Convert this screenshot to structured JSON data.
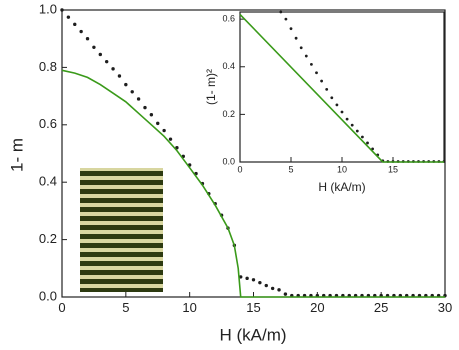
{
  "chart_data": [
    {
      "type": "line",
      "x_label": "H (kA/m)",
      "y_label": "1- m",
      "xlim": [
        0,
        30
      ],
      "ylim": [
        0,
        1.0
      ],
      "xticks": [
        0,
        5,
        10,
        15,
        20,
        25,
        30
      ],
      "yticks": [
        {
          "value": 0,
          "label": "0.0"
        },
        0.2,
        0.4,
        0.6,
        0.8,
        {
          "value": 1.0,
          "label": "1.0"
        }
      ],
      "series": [
        {
          "color": "#1e1e1e",
          "style": "markers",
          "x": [
            0,
            0.5,
            1,
            1.5,
            2,
            2.5,
            3,
            3.5,
            4,
            4.5,
            5,
            5.5,
            6,
            6.5,
            7,
            7.5,
            8,
            8.5,
            9,
            9.5,
            10,
            10.5,
            11,
            11.5,
            12,
            12.5,
            13,
            13.5,
            14,
            14.5,
            15,
            15.5,
            16,
            16.5,
            17,
            17.5,
            18,
            18.5,
            19,
            19.5,
            20,
            20.5,
            21,
            21.5,
            22,
            22.5,
            23,
            23.5,
            24,
            24.5,
            25,
            25.5,
            26,
            26.5,
            27,
            27.5,
            28,
            28.5,
            29,
            29.5,
            30
          ],
          "values": [
            1.0,
            0.975,
            0.95,
            0.925,
            0.9,
            0.87,
            0.845,
            0.82,
            0.795,
            0.77,
            0.74,
            0.715,
            0.69,
            0.66,
            0.635,
            0.605,
            0.58,
            0.55,
            0.52,
            0.49,
            0.46,
            0.43,
            0.395,
            0.36,
            0.325,
            0.285,
            0.24,
            0.18,
            0.07,
            0.065,
            0.06,
            0.05,
            0.04,
            0.03,
            0.025,
            0.01,
            0.005,
            0.005,
            0.005,
            0.005,
            0.005,
            0.005,
            0.005,
            0.005,
            0.005,
            0.005,
            0.005,
            0.005,
            0.005,
            0.005,
            0.005,
            0.005,
            0.005,
            0.005,
            0.005,
            0.005,
            0.005,
            0.005,
            0.005,
            0.005,
            0.005
          ]
        },
        {
          "color": "#3a9a1a",
          "style": "line",
          "x": [
            0,
            1,
            2,
            3,
            4,
            5,
            6,
            7,
            8,
            9,
            10,
            11,
            12,
            13,
            13.5,
            13.8,
            14,
            30
          ],
          "values": [
            0.79,
            0.78,
            0.765,
            0.74,
            0.71,
            0.68,
            0.64,
            0.6,
            0.56,
            0.51,
            0.45,
            0.39,
            0.32,
            0.24,
            0.18,
            0.1,
            0,
            0
          ]
        }
      ]
    },
    {
      "type": "line",
      "x_label": "H (kA/m)",
      "y_label": "(1- m)²",
      "xlim": [
        0,
        20
      ],
      "ylim": [
        0,
        0.63
      ],
      "xticks": [
        0,
        5,
        10,
        15
      ],
      "yticks": [
        {
          "value": 0,
          "label": "0.0"
        },
        0.2,
        0.4,
        0.6
      ],
      "series": [
        {
          "color": "#1e1e1e",
          "style": "markers",
          "x": [
            4,
            4.5,
            5,
            5.5,
            6,
            6.5,
            7,
            7.5,
            8,
            8.5,
            9,
            9.5,
            10,
            10.5,
            11,
            11.5,
            12,
            12.5,
            13,
            13.5,
            14,
            14.5,
            15,
            15.5,
            16,
            16.5,
            17,
            17.5,
            18,
            18.5,
            19,
            19.5,
            20
          ],
          "values": [
            0.63,
            0.6,
            0.56,
            0.52,
            0.48,
            0.445,
            0.41,
            0.375,
            0.34,
            0.305,
            0.27,
            0.24,
            0.21,
            0.18,
            0.155,
            0.13,
            0.105,
            0.08,
            0.055,
            0.03,
            0.005,
            0.002,
            0.002,
            0.002,
            0.002,
            0.002,
            0.002,
            0.002,
            0.002,
            0.002,
            0.002,
            0.002,
            0.002
          ]
        },
        {
          "color": "#3a9a1a",
          "style": "line",
          "x": [
            0,
            14,
            20
          ],
          "values": [
            0.62,
            0,
            0
          ]
        }
      ]
    }
  ]
}
